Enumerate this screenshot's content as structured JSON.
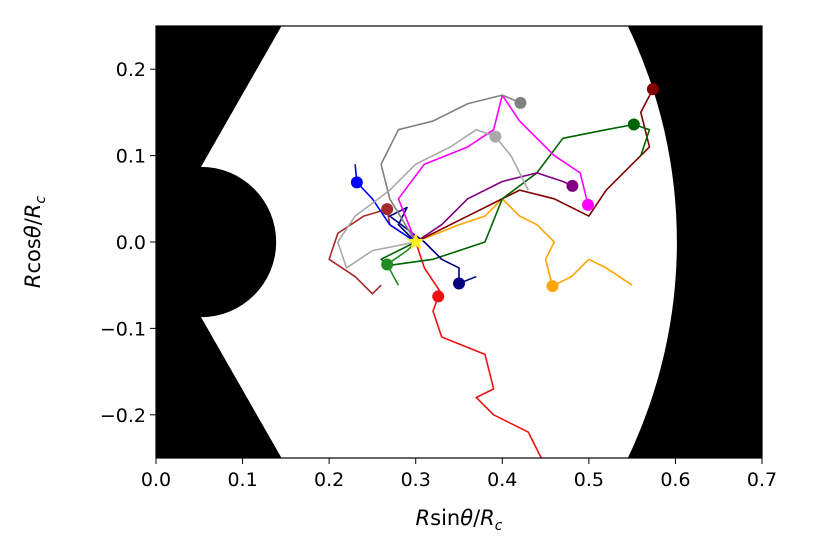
{
  "chart_data": {
    "type": "line",
    "xlabel": "Rsinθ/R_c",
    "ylabel": "Rcosθ/R_c",
    "xlim": [
      0.0,
      0.7
    ],
    "ylim": [
      -0.25,
      0.25
    ],
    "xticks": [
      "0.0",
      "0.1",
      "0.2",
      "0.3",
      "0.4",
      "0.5",
      "0.6",
      "0.7"
    ],
    "yticks": [
      "−0.2",
      "−0.1",
      "0.0",
      "0.1",
      "0.2"
    ],
    "grid": false,
    "legend": "none",
    "excluded_regions_color": "#000000",
    "inner_excluded_radius": 0.1,
    "outer_excluded_radius": 0.6,
    "start_marker": {
      "shape": "star",
      "color": "#ffee22",
      "x": 0.3,
      "y": 0.0
    },
    "series": [
      {
        "color": "#ee1111",
        "end": [
          0.326,
          -0.063
        ],
        "points": [
          [
            0.3,
            0.0
          ],
          [
            0.31,
            -0.03
          ],
          [
            0.33,
            -0.06
          ],
          [
            0.326,
            -0.063
          ],
          [
            0.32,
            -0.08
          ],
          [
            0.33,
            -0.11
          ],
          [
            0.38,
            -0.13
          ],
          [
            0.39,
            -0.17
          ],
          [
            0.37,
            -0.18
          ],
          [
            0.39,
            -0.2
          ],
          [
            0.43,
            -0.22
          ],
          [
            0.45,
            -0.26
          ]
        ]
      },
      {
        "color": "#ffa500",
        "end": [
          0.458,
          -0.051
        ],
        "points": [
          [
            0.3,
            0.0
          ],
          [
            0.35,
            0.02
          ],
          [
            0.38,
            0.03
          ],
          [
            0.4,
            0.05
          ],
          [
            0.42,
            0.03
          ],
          [
            0.44,
            0.02
          ],
          [
            0.46,
            0.0
          ],
          [
            0.45,
            -0.02
          ],
          [
            0.458,
            -0.051
          ],
          [
            0.48,
            -0.04
          ],
          [
            0.5,
            -0.02
          ],
          [
            0.52,
            -0.03
          ],
          [
            0.55,
            -0.05
          ]
        ]
      },
      {
        "color": "#800000",
        "end": [
          0.574,
          0.177
        ],
        "points": [
          [
            0.3,
            0.0
          ],
          [
            0.36,
            0.03
          ],
          [
            0.42,
            0.06
          ],
          [
            0.46,
            0.05
          ],
          [
            0.5,
            0.03
          ],
          [
            0.52,
            0.06
          ],
          [
            0.55,
            0.09
          ],
          [
            0.57,
            0.11
          ],
          [
            0.56,
            0.15
          ],
          [
            0.574,
            0.177
          ]
        ]
      },
      {
        "color": "#a52a2a",
        "end": [
          0.267,
          0.038
        ],
        "points": [
          [
            0.3,
            0.0
          ],
          [
            0.27,
            0.02
          ],
          [
            0.267,
            0.038
          ],
          [
            0.24,
            0.03
          ],
          [
            0.21,
            0.01
          ],
          [
            0.2,
            -0.02
          ],
          [
            0.23,
            -0.04
          ],
          [
            0.25,
            -0.06
          ],
          [
            0.26,
            -0.05
          ]
        ]
      },
      {
        "color": "#006400",
        "end": [
          0.552,
          0.136
        ],
        "points": [
          [
            0.3,
            0.0
          ],
          [
            0.26,
            -0.02
          ],
          [
            0.27,
            -0.027
          ],
          [
            0.32,
            -0.02
          ],
          [
            0.38,
            0.0
          ],
          [
            0.4,
            0.05
          ],
          [
            0.44,
            0.08
          ],
          [
            0.47,
            0.12
          ],
          [
            0.52,
            0.13
          ],
          [
            0.552,
            0.136
          ],
          [
            0.57,
            0.13
          ],
          [
            0.56,
            0.1
          ]
        ]
      },
      {
        "color": "#228b22",
        "end": [
          0.267,
          -0.026
        ],
        "points": [
          [
            0.3,
            0.0
          ],
          [
            0.29,
            -0.01
          ],
          [
            0.267,
            -0.026
          ],
          [
            0.28,
            -0.05
          ]
        ]
      },
      {
        "color": "#000080",
        "end": [
          0.35,
          -0.048
        ],
        "points": [
          [
            0.3,
            0.0
          ],
          [
            0.28,
            0.02
          ],
          [
            0.29,
            0.04
          ],
          [
            0.27,
            0.03
          ],
          [
            0.31,
            0.0
          ],
          [
            0.33,
            -0.02
          ],
          [
            0.35,
            -0.03
          ],
          [
            0.35,
            -0.048
          ],
          [
            0.37,
            -0.04
          ]
        ]
      },
      {
        "color": "#0000ff",
        "end": [
          0.232,
          0.069
        ],
        "points": [
          [
            0.3,
            0.0
          ],
          [
            0.27,
            0.02
          ],
          [
            0.25,
            0.05
          ],
          [
            0.232,
            0.069
          ],
          [
            0.23,
            0.09
          ]
        ]
      },
      {
        "color": "#ff00ff",
        "end": [
          0.499,
          0.043
        ],
        "points": [
          [
            0.3,
            0.0
          ],
          [
            0.28,
            0.05
          ],
          [
            0.31,
            0.09
          ],
          [
            0.36,
            0.11
          ],
          [
            0.39,
            0.13
          ],
          [
            0.4,
            0.17
          ],
          [
            0.42,
            0.14
          ],
          [
            0.46,
            0.1
          ],
          [
            0.49,
            0.08
          ],
          [
            0.499,
            0.043
          ]
        ]
      },
      {
        "color": "#800080",
        "end": [
          0.481,
          0.065
        ],
        "points": [
          [
            0.3,
            0.0
          ],
          [
            0.33,
            0.02
          ],
          [
            0.36,
            0.05
          ],
          [
            0.4,
            0.07
          ],
          [
            0.44,
            0.08
          ],
          [
            0.47,
            0.07
          ],
          [
            0.481,
            0.065
          ]
        ]
      },
      {
        "color": "#808080",
        "end": [
          0.421,
          0.161
        ],
        "points": [
          [
            0.3,
            0.0
          ],
          [
            0.27,
            0.05
          ],
          [
            0.26,
            0.09
          ],
          [
            0.28,
            0.13
          ],
          [
            0.32,
            0.14
          ],
          [
            0.36,
            0.16
          ],
          [
            0.4,
            0.17
          ],
          [
            0.421,
            0.161
          ]
        ]
      },
      {
        "color": "#a9a9a9",
        "end": [
          0.392,
          0.122
        ],
        "points": [
          [
            0.3,
            0.0
          ],
          [
            0.25,
            -0.01
          ],
          [
            0.22,
            -0.03
          ],
          [
            0.21,
            0.0
          ],
          [
            0.23,
            0.03
          ],
          [
            0.27,
            0.06
          ],
          [
            0.3,
            0.09
          ],
          [
            0.34,
            0.11
          ],
          [
            0.37,
            0.13
          ],
          [
            0.392,
            0.122
          ],
          [
            0.41,
            0.1
          ],
          [
            0.43,
            0.06
          ]
        ]
      }
    ]
  }
}
